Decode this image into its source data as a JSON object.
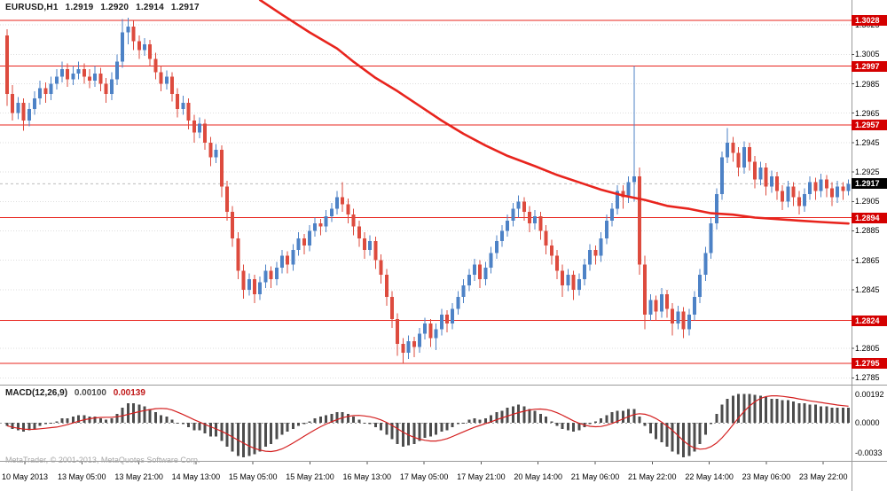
{
  "header": {
    "symbol": "EURUSD,H1",
    "open": "1.2919",
    "high": "1.2920",
    "low": "1.2914",
    "close": "1.2917"
  },
  "macd_panel": {
    "label": "MACD(12,26,9)",
    "main_value": "0.00100",
    "signal_value": "0.00139"
  },
  "watermark": {
    "text": "MetaTrader, © 2001-2013, MetaQuotes Software Corp."
  },
  "colors": {
    "bull": "#4d82c6",
    "bear": "#dd4b3e",
    "ma": "#e8241d",
    "level": "#e8241d",
    "level_tag_bg": "#d40000",
    "current_tag_bg": "#000000",
    "grid": "#dedede",
    "bid_line": "#bdbdbd",
    "macd_bar": "#4d4d4d",
    "macd_signal": "#d42020",
    "separator": "#9a9a9a"
  },
  "chart_data": {
    "type": "candlestick",
    "title": "EURUSD,H1",
    "y_axis": {
      "top": 1.3042,
      "bottom": 1.2781,
      "tick_prices": [
        1.3025,
        1.3005,
        1.2985,
        1.2965,
        1.2945,
        1.2925,
        1.2905,
        1.2885,
        1.2865,
        1.2845,
        1.2805,
        1.2785
      ]
    },
    "x_axis": {
      "tick_labels": [
        "10 May 2013",
        "13 May 05:00",
        "13 May 21:00",
        "14 May 13:00",
        "15 May 05:00",
        "15 May 21:00",
        "16 May 13:00",
        "17 May 05:00",
        "17 May 21:00",
        "20 May 14:00",
        "21 May 06:00",
        "21 May 22:00",
        "22 May 14:00",
        "23 May 06:00",
        "23 May 22:00"
      ]
    },
    "levels": [
      1.3028,
      1.2997,
      1.2957,
      1.2894,
      1.2824,
      1.2795
    ],
    "current_price": 1.2917,
    "candles": [
      [
        1.3018,
        1.3022,
        1.297,
        1.2978
      ],
      [
        1.2978,
        1.2984,
        1.296,
        1.2965
      ],
      [
        1.2965,
        1.2976,
        1.2961,
        1.2972
      ],
      [
        1.2972,
        1.2975,
        1.2953,
        1.296
      ],
      [
        1.296,
        1.2972,
        1.2956,
        1.2968
      ],
      [
        1.2968,
        1.298,
        1.2964,
        1.2975
      ],
      [
        1.2975,
        1.2987,
        1.2971,
        1.2982
      ],
      [
        1.2982,
        1.2986,
        1.2972,
        1.2978
      ],
      [
        1.2978,
        1.299,
        1.2974,
        1.2985
      ],
      [
        1.2985,
        1.2995,
        1.2981,
        1.299
      ],
      [
        1.299,
        1.3,
        1.2986,
        1.2995
      ],
      [
        1.2995,
        1.2999,
        1.2983,
        1.2988
      ],
      [
        1.2988,
        1.2997,
        1.2984,
        1.2992
      ],
      [
        1.2992,
        1.3,
        1.2988,
        1.2995
      ],
      [
        1.2995,
        1.2999,
        1.2985,
        1.299
      ],
      [
        1.299,
        1.2995,
        1.2982,
        1.2987
      ],
      [
        1.2987,
        1.2997,
        1.2983,
        1.2992
      ],
      [
        1.2992,
        1.2996,
        1.298,
        1.2985
      ],
      [
        1.2985,
        1.2989,
        1.2972,
        1.2978
      ],
      [
        1.2978,
        1.2993,
        1.2974,
        1.2988
      ],
      [
        1.2988,
        1.3005,
        1.2984,
        1.3
      ],
      [
        1.3,
        1.3029,
        1.2996,
        1.302
      ],
      [
        1.302,
        1.303,
        1.3012,
        1.3024
      ],
      [
        1.3024,
        1.3028,
        1.3008,
        1.3014
      ],
      [
        1.3014,
        1.3018,
        1.3002,
        1.3008
      ],
      [
        1.3008,
        1.3016,
        1.3004,
        1.3012
      ],
      [
        1.3012,
        1.3015,
        1.2997,
        1.3002
      ],
      [
        1.3002,
        1.3006,
        1.2988,
        1.2993
      ],
      [
        1.2993,
        1.2997,
        1.298,
        1.2985
      ],
      [
        1.2985,
        1.2994,
        1.2981,
        1.299
      ],
      [
        1.299,
        1.2993,
        1.2973,
        1.2978
      ],
      [
        1.2978,
        1.2982,
        1.2962,
        1.2968
      ],
      [
        1.2968,
        1.2977,
        1.2964,
        1.2972
      ],
      [
        1.2972,
        1.2975,
        1.2954,
        1.296
      ],
      [
        1.296,
        1.2964,
        1.2945,
        1.2952
      ],
      [
        1.2952,
        1.2962,
        1.2948,
        1.2958
      ],
      [
        1.2958,
        1.2961,
        1.294,
        1.2945
      ],
      [
        1.2945,
        1.2949,
        1.2929,
        1.2935
      ],
      [
        1.2935,
        1.2944,
        1.2931,
        1.294
      ],
      [
        1.294,
        1.2943,
        1.2908,
        1.2915
      ],
      [
        1.2915,
        1.2919,
        1.2892,
        1.2898
      ],
      [
        1.2898,
        1.2902,
        1.2874,
        1.288
      ],
      [
        1.288,
        1.2884,
        1.2852,
        1.2858
      ],
      [
        1.2858,
        1.2862,
        1.2839,
        1.2845
      ],
      [
        1.2845,
        1.2856,
        1.2841,
        1.2852
      ],
      [
        1.2852,
        1.2855,
        1.2836,
        1.2842
      ],
      [
        1.2842,
        1.2854,
        1.2838,
        1.285
      ],
      [
        1.285,
        1.2862,
        1.2846,
        1.2858
      ],
      [
        1.2858,
        1.2861,
        1.2846,
        1.2852
      ],
      [
        1.2852,
        1.2864,
        1.2848,
        1.286
      ],
      [
        1.286,
        1.2872,
        1.2856,
        1.2868
      ],
      [
        1.2868,
        1.2871,
        1.2856,
        1.2862
      ],
      [
        1.2862,
        1.2876,
        1.2858,
        1.2872
      ],
      [
        1.2872,
        1.2884,
        1.2868,
        1.288
      ],
      [
        1.288,
        1.2883,
        1.2869,
        1.2875
      ],
      [
        1.2875,
        1.2889,
        1.2871,
        1.2885
      ],
      [
        1.2885,
        1.2894,
        1.2881,
        1.289
      ],
      [
        1.289,
        1.2893,
        1.2882,
        1.2888
      ],
      [
        1.2888,
        1.2899,
        1.2884,
        1.2895
      ],
      [
        1.2895,
        1.2904,
        1.2891,
        1.29
      ],
      [
        1.29,
        1.2912,
        1.2896,
        1.2908
      ],
      [
        1.2908,
        1.2918,
        1.2898,
        1.2903
      ],
      [
        1.2903,
        1.2907,
        1.289,
        1.2896
      ],
      [
        1.2896,
        1.29,
        1.2882,
        1.2888
      ],
      [
        1.2888,
        1.2892,
        1.2874,
        1.288
      ],
      [
        1.288,
        1.2884,
        1.2866,
        1.2872
      ],
      [
        1.2872,
        1.2882,
        1.2868,
        1.2878
      ],
      [
        1.2878,
        1.2881,
        1.2859,
        1.2865
      ],
      [
        1.2865,
        1.2869,
        1.2849,
        1.2855
      ],
      [
        1.2855,
        1.2859,
        1.2834,
        1.284
      ],
      [
        1.284,
        1.2844,
        1.2819,
        1.2825
      ],
      [
        1.2825,
        1.2829,
        1.28,
        1.2808
      ],
      [
        1.2808,
        1.2812,
        1.2795,
        1.2802
      ],
      [
        1.2802,
        1.2814,
        1.2798,
        1.281
      ],
      [
        1.281,
        1.2813,
        1.2799,
        1.2806
      ],
      [
        1.2806,
        1.2819,
        1.2802,
        1.2815
      ],
      [
        1.2815,
        1.2826,
        1.2811,
        1.2822
      ],
      [
        1.2822,
        1.2825,
        1.2806,
        1.2812
      ],
      [
        1.2812,
        1.2822,
        1.2804,
        1.2818
      ],
      [
        1.2818,
        1.2832,
        1.2814,
        1.2828
      ],
      [
        1.2828,
        1.2831,
        1.2816,
        1.2822
      ],
      [
        1.2822,
        1.2836,
        1.2818,
        1.2832
      ],
      [
        1.2832,
        1.2844,
        1.2828,
        1.284
      ],
      [
        1.284,
        1.2852,
        1.2836,
        1.2848
      ],
      [
        1.2848,
        1.2859,
        1.2844,
        1.2855
      ],
      [
        1.2855,
        1.2866,
        1.2851,
        1.2862
      ],
      [
        1.2862,
        1.2865,
        1.2846,
        1.2852
      ],
      [
        1.2852,
        1.2864,
        1.2848,
        1.286
      ],
      [
        1.286,
        1.2874,
        1.2856,
        1.287
      ],
      [
        1.287,
        1.2882,
        1.2866,
        1.2878
      ],
      [
        1.2878,
        1.2889,
        1.2874,
        1.2885
      ],
      [
        1.2885,
        1.2896,
        1.2881,
        1.2892
      ],
      [
        1.2892,
        1.2904,
        1.2888,
        1.29
      ],
      [
        1.29,
        1.2909,
        1.2894,
        1.2905
      ],
      [
        1.2905,
        1.2908,
        1.2892,
        1.2898
      ],
      [
        1.2898,
        1.2902,
        1.2884,
        1.289
      ],
      [
        1.289,
        1.2899,
        1.2886,
        1.2895
      ],
      [
        1.2895,
        1.2898,
        1.2879,
        1.2885
      ],
      [
        1.2885,
        1.2889,
        1.2869,
        1.2875
      ],
      [
        1.2875,
        1.2879,
        1.2862,
        1.2868
      ],
      [
        1.2868,
        1.2872,
        1.2852,
        1.2858
      ],
      [
        1.2858,
        1.2862,
        1.284,
        1.2848
      ],
      [
        1.2848,
        1.2859,
        1.2844,
        1.2855
      ],
      [
        1.2855,
        1.2858,
        1.2838,
        1.2845
      ],
      [
        1.2845,
        1.2856,
        1.2841,
        1.2852
      ],
      [
        1.2852,
        1.2866,
        1.2848,
        1.2862
      ],
      [
        1.2862,
        1.2876,
        1.2858,
        1.2872
      ],
      [
        1.2872,
        1.2875,
        1.2862,
        1.2868
      ],
      [
        1.2868,
        1.2884,
        1.2864,
        1.288
      ],
      [
        1.288,
        1.2896,
        1.2876,
        1.2892
      ],
      [
        1.2892,
        1.2904,
        1.2888,
        1.29
      ],
      [
        1.29,
        1.2916,
        1.2896,
        1.2912
      ],
      [
        1.2912,
        1.2916,
        1.29,
        1.2908
      ],
      [
        1.2908,
        1.2922,
        1.2904,
        1.2918
      ],
      [
        1.2918,
        1.2997,
        1.2905,
        1.2922
      ],
      [
        1.2922,
        1.2928,
        1.2855,
        1.2862
      ],
      [
        1.2862,
        1.2868,
        1.2818,
        1.2828
      ],
      [
        1.2828,
        1.2842,
        1.2824,
        1.2838
      ],
      [
        1.2838,
        1.2841,
        1.2824,
        1.283
      ],
      [
        1.283,
        1.2846,
        1.2826,
        1.2842
      ],
      [
        1.2842,
        1.2845,
        1.2826,
        1.2832
      ],
      [
        1.2832,
        1.2836,
        1.2814,
        1.2822
      ],
      [
        1.2822,
        1.2834,
        1.2818,
        1.283
      ],
      [
        1.283,
        1.2833,
        1.2812,
        1.2818
      ],
      [
        1.2818,
        1.2832,
        1.2814,
        1.2828
      ],
      [
        1.2828,
        1.2844,
        1.2824,
        1.284
      ],
      [
        1.284,
        1.2859,
        1.2836,
        1.2855
      ],
      [
        1.2855,
        1.2874,
        1.2851,
        1.287
      ],
      [
        1.287,
        1.2894,
        1.2866,
        1.289
      ],
      [
        1.289,
        1.2914,
        1.2886,
        1.291
      ],
      [
        1.291,
        1.2939,
        1.2906,
        1.2935
      ],
      [
        1.2935,
        1.2955,
        1.2931,
        1.2945
      ],
      [
        1.2945,
        1.2949,
        1.2932,
        1.2938
      ],
      [
        1.2938,
        1.2942,
        1.2922,
        1.2928
      ],
      [
        1.2928,
        1.2946,
        1.2924,
        1.2942
      ],
      [
        1.2942,
        1.2945,
        1.2926,
        1.2932
      ],
      [
        1.2932,
        1.2936,
        1.2914,
        1.292
      ],
      [
        1.292,
        1.2932,
        1.2916,
        1.2928
      ],
      [
        1.2928,
        1.2931,
        1.2909,
        1.2915
      ],
      [
        1.2915,
        1.2926,
        1.2911,
        1.2922
      ],
      [
        1.2922,
        1.2925,
        1.2906,
        1.2912
      ],
      [
        1.2912,
        1.2916,
        1.2899,
        1.2905
      ],
      [
        1.2905,
        1.2919,
        1.2901,
        1.2915
      ],
      [
        1.2915,
        1.2918,
        1.2902,
        1.2908
      ],
      [
        1.2908,
        1.2912,
        1.2896,
        1.2902
      ],
      [
        1.2902,
        1.2914,
        1.2898,
        1.291
      ],
      [
        1.291,
        1.2922,
        1.2906,
        1.2918
      ],
      [
        1.2918,
        1.2921,
        1.2906,
        1.2912
      ],
      [
        1.2912,
        1.2924,
        1.2908,
        1.292
      ],
      [
        1.292,
        1.2923,
        1.2908,
        1.2914
      ],
      [
        1.2914,
        1.2918,
        1.2902,
        1.2908
      ],
      [
        1.2908,
        1.2919,
        1.2904,
        1.2915
      ],
      [
        1.2915,
        1.2918,
        1.2906,
        1.2912
      ],
      [
        1.2912,
        1.292,
        1.2909,
        1.2917
      ]
    ],
    "ma_line": {
      "name": "slow-moving-average",
      "points": [
        [
          46,
          1.3042
        ],
        [
          50,
          1.3032
        ],
        [
          55,
          1.302
        ],
        [
          60,
          1.3009
        ],
        [
          63,
          1.3
        ],
        [
          67,
          1.2989
        ],
        [
          71,
          1.298
        ],
        [
          75,
          1.297
        ],
        [
          79,
          1.296
        ],
        [
          83,
          1.2951
        ],
        [
          87,
          1.2943
        ],
        [
          91,
          1.2936
        ],
        [
          96,
          1.2929
        ],
        [
          100,
          1.2923
        ],
        [
          104,
          1.2918
        ],
        [
          108,
          1.2913
        ],
        [
          112,
          1.2909
        ],
        [
          116,
          1.2906
        ],
        [
          120,
          1.2902
        ],
        [
          124,
          1.29
        ],
        [
          128,
          1.2897
        ],
        [
          132,
          1.2896
        ],
        [
          136,
          1.2894
        ],
        [
          140,
          1.2893
        ],
        [
          144,
          1.2892
        ],
        [
          148,
          1.2891
        ],
        [
          153,
          1.289
        ]
      ]
    },
    "macd": {
      "type": "bar",
      "name": "MACD(12,26,9)",
      "signal_period": 9,
      "axis_labels": [
        "0.00192",
        "0.0000",
        "-0.0033"
      ],
      "values": [
        -0.0002,
        -0.0004,
        -0.0005,
        -0.0006,
        -0.0005,
        -0.0004,
        -0.0002,
        -0.0001,
        0,
        0.0001,
        0.0003,
        0.0003,
        0.0004,
        0.0005,
        0.0005,
        0.0004,
        0.0004,
        0.0003,
        0.0002,
        0.0003,
        0.0006,
        0.001,
        0.0013,
        0.0013,
        0.0012,
        0.0011,
        0.0009,
        0.0007,
        0.0005,
        0.0004,
        0.0002,
        0,
        -0.0001,
        -0.0003,
        -0.0005,
        -0.0005,
        -0.0007,
        -0.0009,
        -0.0009,
        -0.0012,
        -0.0016,
        -0.0019,
        -0.0022,
        -0.0023,
        -0.0022,
        -0.0021,
        -0.0019,
        -0.0016,
        -0.0014,
        -0.0011,
        -0.0008,
        -0.0006,
        -0.0004,
        -0.0002,
        -0.0001,
        0.0001,
        0.0003,
        0.0004,
        0.0005,
        0.0006,
        0.0007,
        0.0007,
        0.0006,
        0.0004,
        0.0002,
        0,
        -0.0001,
        -0.0003,
        -0.0005,
        -0.0008,
        -0.0011,
        -0.0014,
        -0.0016,
        -0.0015,
        -0.0014,
        -0.0012,
        -0.001,
        -0.0009,
        -0.0008,
        -0.0006,
        -0.0005,
        -0.0003,
        -0.0001,
        0,
        0.0002,
        0.0003,
        0.0002,
        0.0003,
        0.0005,
        0.0007,
        0.0008,
        0.001,
        0.0011,
        0.0012,
        0.0011,
        0.0009,
        0.0008,
        0.0006,
        0.0004,
        0.0001,
        -0.0002,
        -0.0004,
        -0.0005,
        -0.0006,
        -0.0005,
        -0.0003,
        -0.0001,
        0.0001,
        0.0003,
        0.0005,
        0.0007,
        0.0008,
        0.0008,
        0.0009,
        0.0009,
        0.0004,
        -0.0002,
        -0.0007,
        -0.0011,
        -0.0013,
        -0.0016,
        -0.0019,
        -0.0021,
        -0.0023,
        -0.0022,
        -0.0019,
        -0.0014,
        -0.0008,
        -0.0001,
        0.0006,
        0.0012,
        0.0016,
        0.0018,
        0.0019,
        0.00192,
        0.0019,
        0.00185,
        0.0018,
        0.0017,
        0.0016,
        0.0016,
        0.0015,
        0.0015,
        0.0014,
        0.0013,
        0.0013,
        0.0012,
        0.0012,
        0.0011,
        0.0011,
        0.001,
        0.001,
        0.001,
        0.001
      ]
    }
  }
}
